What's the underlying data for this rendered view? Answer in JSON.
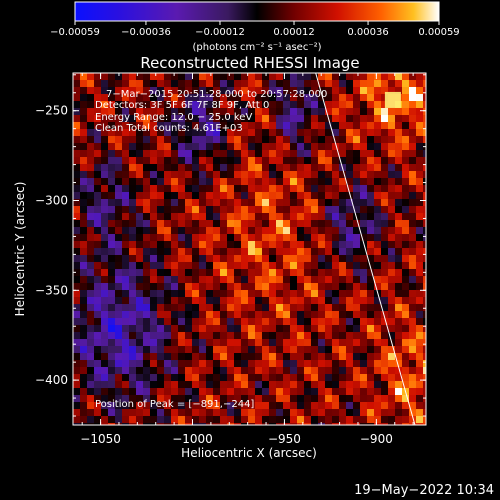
{
  "chart_data": {
    "type": "heatmap",
    "title": "Reconstructed RHESSI Image",
    "xlabel": "Heliocentric X (arcsec)",
    "ylabel": "Heliocentric Y (arcsec)",
    "xlim": [
      -1065,
      -873
    ],
    "ylim": [
      -425,
      -229
    ],
    "x_ticks": [
      -1050,
      -1000,
      -950,
      -900
    ],
    "x_tick_labels": [
      "−1050",
      "−1000",
      "−950",
      "−900"
    ],
    "y_ticks": [
      -250,
      -300,
      -350,
      -400
    ],
    "y_tick_labels": [
      "−250",
      "−300",
      "−350",
      "−400"
    ],
    "colorbar": {
      "range": [
        -0.00059,
        0.00059
      ],
      "ticks": [
        -0.00059,
        -0.00036,
        -0.00012,
        0.00012,
        0.00036,
        0.00059
      ],
      "tick_labels": [
        "−0.00059",
        "−0.00036",
        "−0.00012",
        "0.00012",
        "0.00036",
        "0.00059"
      ],
      "unit": "(photons cm⁻² s⁻¹ asec⁻²)"
    },
    "annotations": {
      "time_range": "7−Mar−2015 20:51:28.000 to 20:57:28.000",
      "detectors": "Detectors: 3F 5F 6F 7F 8F 9F, Att 0",
      "energy": "Energy Range: 12.0 − 25.0 keV",
      "clean": "Clean    Total counts: 4.61E+03",
      "peak": "Position of Peak = [−891,−244]"
    },
    "peak_position": [
      -891,
      -244
    ],
    "limb_line": [
      [
        -933,
        -229
      ],
      [
        -879,
        -425
      ]
    ],
    "colors": {
      "background": "#000000",
      "text": "#ffffff"
    }
  },
  "footer": {
    "date": "19−May−2022 10:34"
  }
}
